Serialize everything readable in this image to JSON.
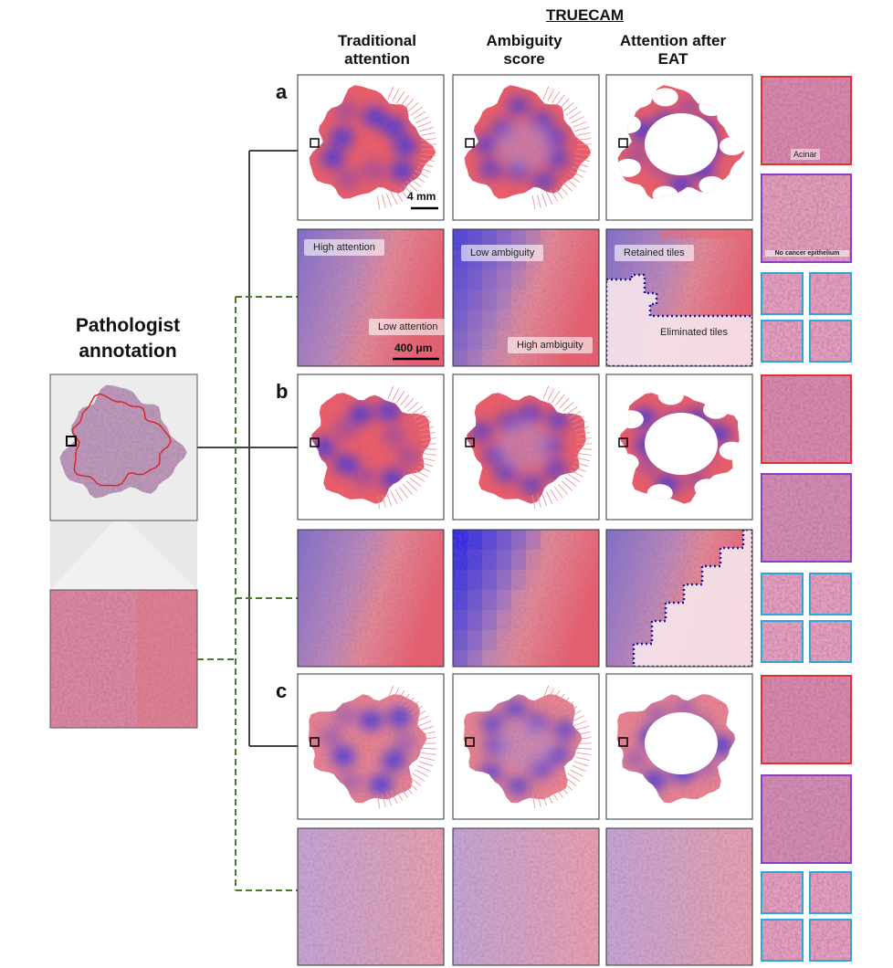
{
  "header": {
    "group_title": "TRUECAM",
    "columns": [
      "Traditional attention",
      "Ambiguity score",
      "Attention after EAT"
    ]
  },
  "left": {
    "title": "Pathologist annotation"
  },
  "rows": [
    {
      "label": "a"
    },
    {
      "label": "b"
    },
    {
      "label": "c"
    }
  ],
  "scale_bars": {
    "overview": "4 mm",
    "zoom": "400 μm"
  },
  "annotations": {
    "high_attention": "High attention",
    "low_attention": "Low attention",
    "low_ambiguity": "Low ambiguity",
    "high_ambiguity": "High ambiguity",
    "retained": "Retained tiles",
    "eliminated": "Eliminated tiles"
  },
  "tile_labels": {
    "acinar": "Acinar",
    "no_cancer": "No cancer epithelium"
  }
}
